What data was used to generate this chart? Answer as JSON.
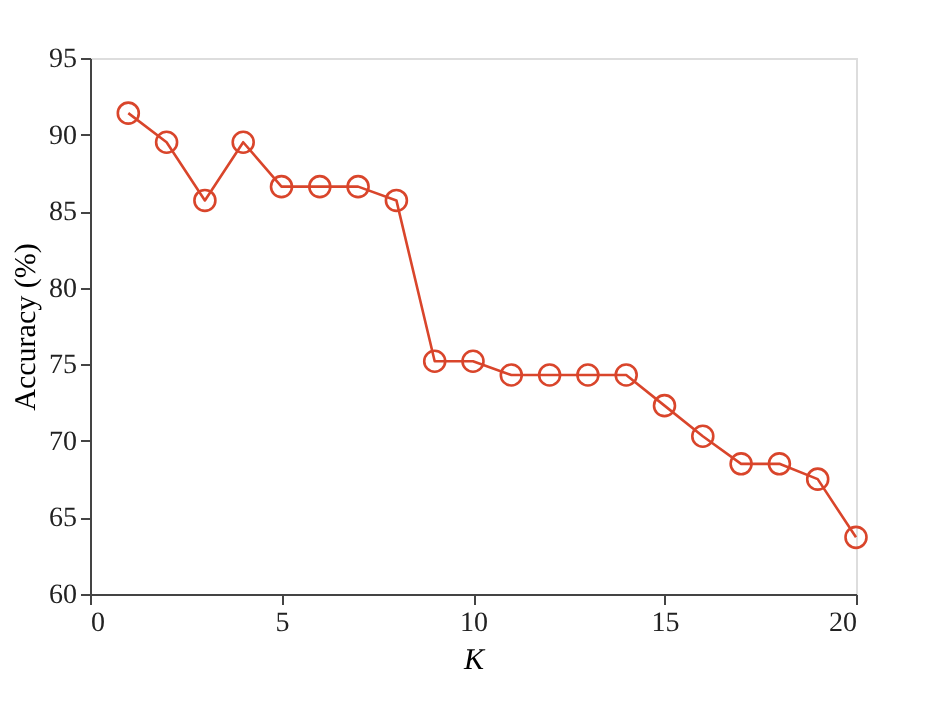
{
  "chart_data": {
    "type": "line",
    "xlabel": "K",
    "ylabel": "Accuracy (%)",
    "x": [
      1,
      2,
      3,
      4,
      5,
      6,
      7,
      8,
      9,
      10,
      11,
      12,
      13,
      14,
      15,
      16,
      17,
      18,
      19,
      20
    ],
    "series": [
      {
        "color": "#d9452b",
        "values": [
          91.4,
          89.5,
          85.7,
          89.5,
          86.6,
          86.6,
          86.6,
          85.7,
          75.2,
          75.2,
          74.3,
          74.3,
          74.3,
          74.3,
          72.3,
          70.3,
          68.5,
          68.5,
          67.5,
          63.7
        ]
      }
    ],
    "xlim": [
      0,
      20
    ],
    "xticks": [
      0,
      5,
      10,
      15,
      20
    ],
    "ylim": [
      60,
      95
    ],
    "yticks": [
      60,
      65,
      70,
      75,
      80,
      85,
      90,
      95
    ],
    "grid": false,
    "legend": false,
    "marker": "circle",
    "line_style": "solid"
  }
}
